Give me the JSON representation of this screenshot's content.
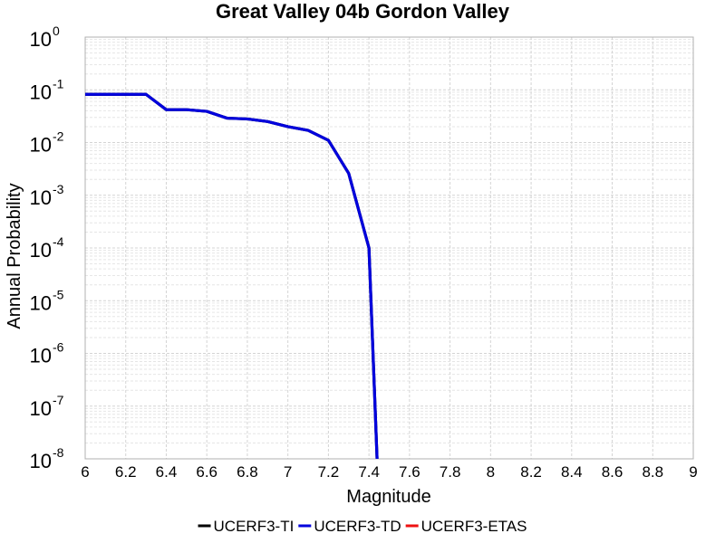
{
  "chart_data": {
    "type": "line",
    "title": "Great Valley 04b Gordon Valley",
    "xlabel": "Magnitude",
    "ylabel": "Annual Probability",
    "xlim": [
      6,
      9
    ],
    "ylim": [
      1e-08,
      1
    ],
    "yscale": "log",
    "grid": true,
    "legend_position": "bottom",
    "x_ticks": [
      "6",
      "6.2",
      "6.4",
      "6.6",
      "6.8",
      "7",
      "7.2",
      "7.4",
      "7.6",
      "7.8",
      "8",
      "8.2",
      "8.4",
      "8.6",
      "8.8",
      "9"
    ],
    "y_ticks": [
      {
        "base": "10",
        "exp": "0"
      },
      {
        "base": "10",
        "exp": "-1"
      },
      {
        "base": "10",
        "exp": "-2"
      },
      {
        "base": "10",
        "exp": "-3"
      },
      {
        "base": "10",
        "exp": "-4"
      },
      {
        "base": "10",
        "exp": "-5"
      },
      {
        "base": "10",
        "exp": "-6"
      },
      {
        "base": "10",
        "exp": "-7"
      },
      {
        "base": "10",
        "exp": "-8"
      }
    ],
    "series": [
      {
        "name": "UCERF3-TI",
        "color": "#000000",
        "x": [
          6.0,
          6.1,
          6.2,
          6.3,
          6.4,
          6.5,
          6.6,
          6.7,
          6.8,
          6.9,
          7.0,
          7.1,
          7.2,
          7.3,
          7.4,
          7.44
        ],
        "y": [
          0.082,
          0.082,
          0.082,
          0.082,
          0.042,
          0.042,
          0.039,
          0.029,
          0.028,
          0.025,
          0.02,
          0.017,
          0.011,
          0.0026,
          0.0001,
          1e-08
        ]
      },
      {
        "name": "UCERF3-TD",
        "color": "#0000dd",
        "x": [
          6.0,
          6.1,
          6.2,
          6.3,
          6.4,
          6.5,
          6.6,
          6.7,
          6.8,
          6.9,
          7.0,
          7.1,
          7.2,
          7.3,
          7.4,
          7.44
        ],
        "y": [
          0.082,
          0.082,
          0.082,
          0.082,
          0.042,
          0.042,
          0.039,
          0.029,
          0.028,
          0.025,
          0.02,
          0.017,
          0.011,
          0.0026,
          0.0001,
          1e-08
        ]
      },
      {
        "name": "UCERF3-ETAS",
        "color": "#ee1111",
        "x": [],
        "y": []
      }
    ]
  }
}
